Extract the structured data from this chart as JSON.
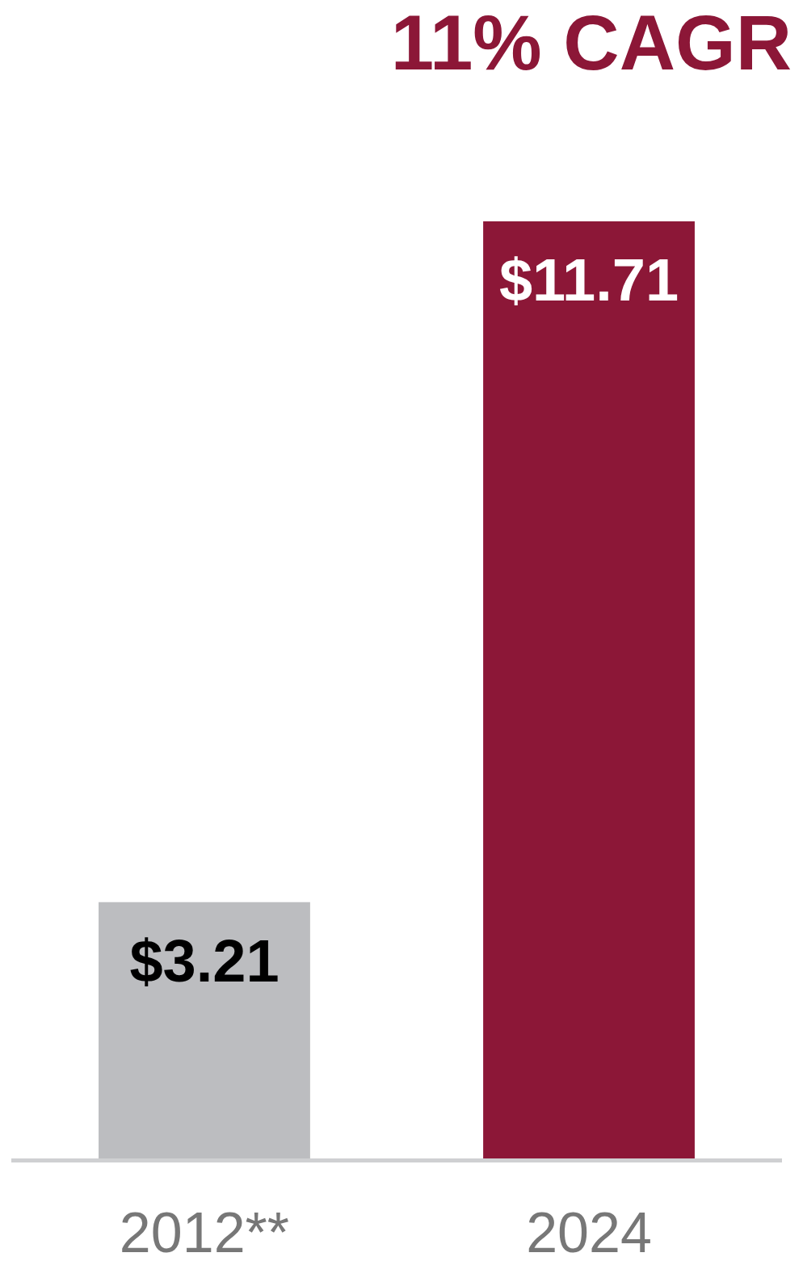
{
  "chart_data": {
    "type": "bar",
    "title": "11% CAGR",
    "categories": [
      "2012**",
      "2024"
    ],
    "values": [
      3.21,
      11.71
    ],
    "colors": [
      "#bcbdc0",
      "#8c1737"
    ],
    "value_labels": [
      "$3.21",
      "$11.71"
    ]
  }
}
